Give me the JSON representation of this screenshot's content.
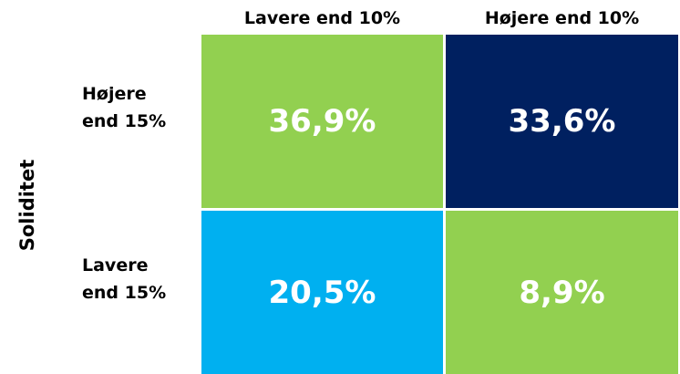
{
  "y_axis_label": "Soliditet",
  "columns": [
    "Lavere end 10%",
    "Højere end 10%"
  ],
  "rows": [
    {
      "label": [
        "Højere",
        "end 15%"
      ],
      "cells": [
        {
          "text": "36,9%",
          "color": "#92d050"
        },
        {
          "text": "33,6%",
          "color": "#002060"
        }
      ]
    },
    {
      "label": [
        "Lavere",
        "end 15%"
      ],
      "cells": [
        {
          "text": "20,5%",
          "color": "#00b0f0"
        },
        {
          "text": "8,9%",
          "color": "#92d050"
        }
      ]
    }
  ]
}
